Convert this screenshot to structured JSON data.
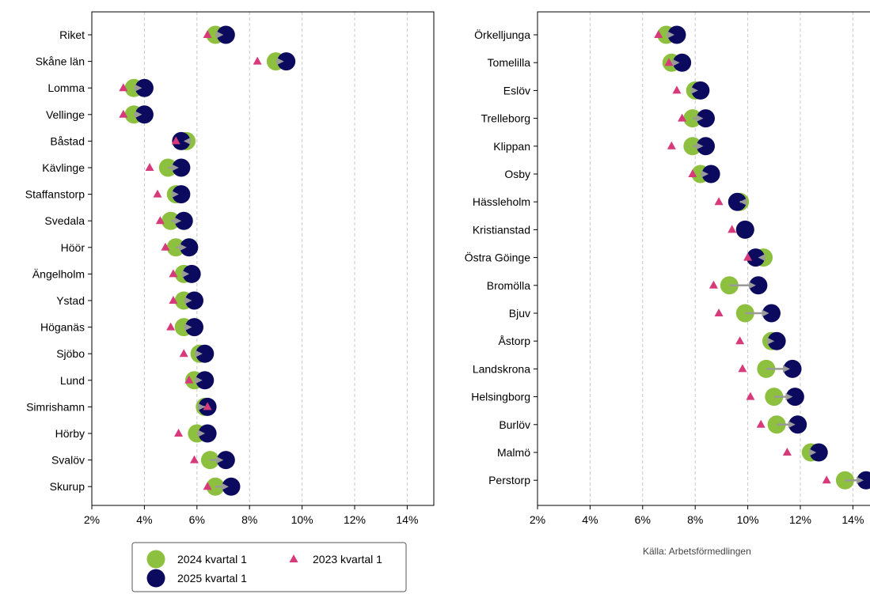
{
  "colors": {
    "y2024": "#8dc03f",
    "y2025": "#0b0a5e",
    "y2023": "#d63a7a",
    "arrow": "#9a9a9a",
    "grid": "#c8c8c8"
  },
  "legend": {
    "y2024": "2024 kvartal 1",
    "y2025": "2025 kvartal 1",
    "y2023": "2023 kvartal 1"
  },
  "source": "Källa: Arbetsförmedlingen",
  "chart_data": [
    {
      "type": "scatter",
      "grid": "vertical dashed",
      "xlim": [
        2,
        15
      ],
      "xticks": [
        "2%",
        "4%",
        "6%",
        "8%",
        "10%",
        "12%",
        "14%"
      ],
      "categories": [
        "Riket",
        "Skåne län",
        "Lomma",
        "Vellinge",
        "Båstad",
        "Kävlinge",
        "Staffanstorp",
        "Svedala",
        "Höör",
        "Ängelholm",
        "Ystad",
        "Höganäs",
        "Sjöbo",
        "Lund",
        "Simrishamn",
        "Hörby",
        "Svalöv",
        "Skurup"
      ],
      "series": [
        {
          "name": "2024 kvartal 1",
          "key": "y2024",
          "values": [
            6.7,
            9.0,
            3.6,
            3.6,
            5.6,
            4.9,
            5.2,
            5.0,
            5.2,
            5.5,
            5.5,
            5.5,
            6.1,
            5.9,
            6.3,
            6.0,
            6.5,
            6.7
          ]
        },
        {
          "name": "2025 kvartal 1",
          "key": "y2025",
          "values": [
            7.1,
            9.4,
            4.0,
            4.0,
            5.4,
            5.4,
            5.4,
            5.5,
            5.7,
            5.8,
            5.9,
            5.9,
            6.3,
            6.3,
            6.4,
            6.4,
            7.1,
            7.3
          ]
        },
        {
          "name": "2023 kvartal 1",
          "key": "y2023",
          "values": [
            6.4,
            8.3,
            3.2,
            3.2,
            5.2,
            4.2,
            4.5,
            4.6,
            4.8,
            5.1,
            5.1,
            5.0,
            5.5,
            5.7,
            6.4,
            5.3,
            5.9,
            6.4
          ]
        }
      ]
    },
    {
      "type": "scatter",
      "grid": "vertical dashed",
      "xlim": [
        2,
        15
      ],
      "xticks": [
        "2%",
        "4%",
        "6%",
        "8%",
        "10%",
        "12%",
        "14%"
      ],
      "categories": [
        "Örkelljunga",
        "Tomelilla",
        "Eslöv",
        "Trelleborg",
        "Klippan",
        "Osby",
        "Hässleholm",
        "Kristianstad",
        "Östra Göinge",
        "Bromölla",
        "Bjuv",
        "Åstorp",
        "Landskrona",
        "Helsingborg",
        "Burlöv",
        "Malmö",
        "Perstorp"
      ],
      "series": [
        {
          "name": "2024 kvartal 1",
          "key": "y2024",
          "values": [
            6.9,
            7.1,
            8.0,
            7.9,
            7.9,
            8.2,
            9.7,
            9.9,
            10.6,
            9.3,
            9.9,
            10.9,
            10.7,
            11.0,
            11.1,
            12.4,
            13.7
          ]
        },
        {
          "name": "2025 kvartal 1",
          "key": "y2025",
          "values": [
            7.3,
            7.5,
            8.2,
            8.4,
            8.4,
            8.6,
            9.6,
            9.9,
            10.3,
            10.4,
            10.9,
            11.1,
            11.7,
            11.8,
            11.9,
            12.7,
            14.5
          ]
        },
        {
          "name": "2023 kvartal 1",
          "key": "y2023",
          "values": [
            6.6,
            7.0,
            7.3,
            7.5,
            7.1,
            7.9,
            8.9,
            9.4,
            10.0,
            8.7,
            8.9,
            9.7,
            9.8,
            10.1,
            10.5,
            11.5,
            13.0
          ]
        }
      ]
    }
  ]
}
